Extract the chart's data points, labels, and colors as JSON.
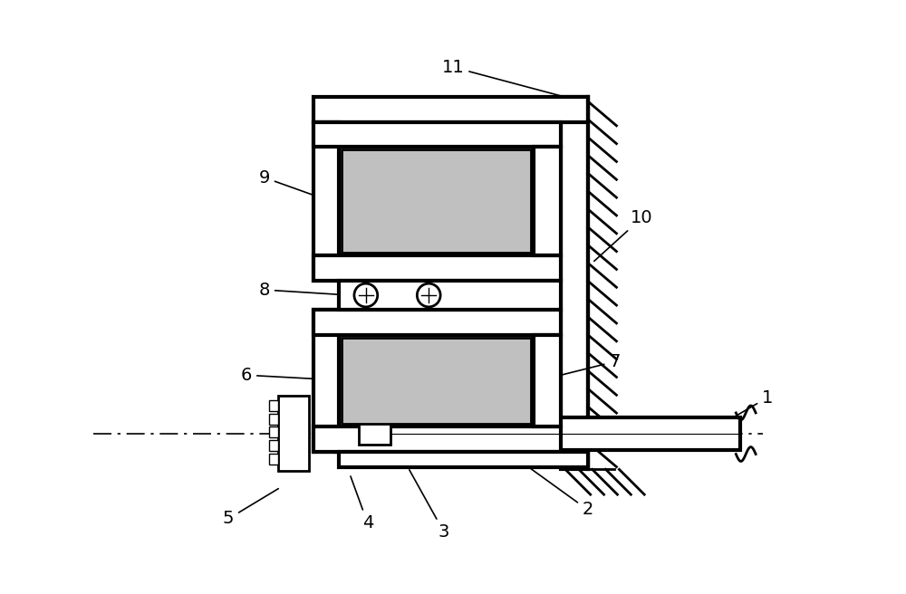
{
  "bg_color": "#ffffff",
  "line_color": "#000000",
  "gray_fill": "#c0c0c0",
  "fig_width": 10.0,
  "fig_height": 6.56,
  "lw": 3.0
}
